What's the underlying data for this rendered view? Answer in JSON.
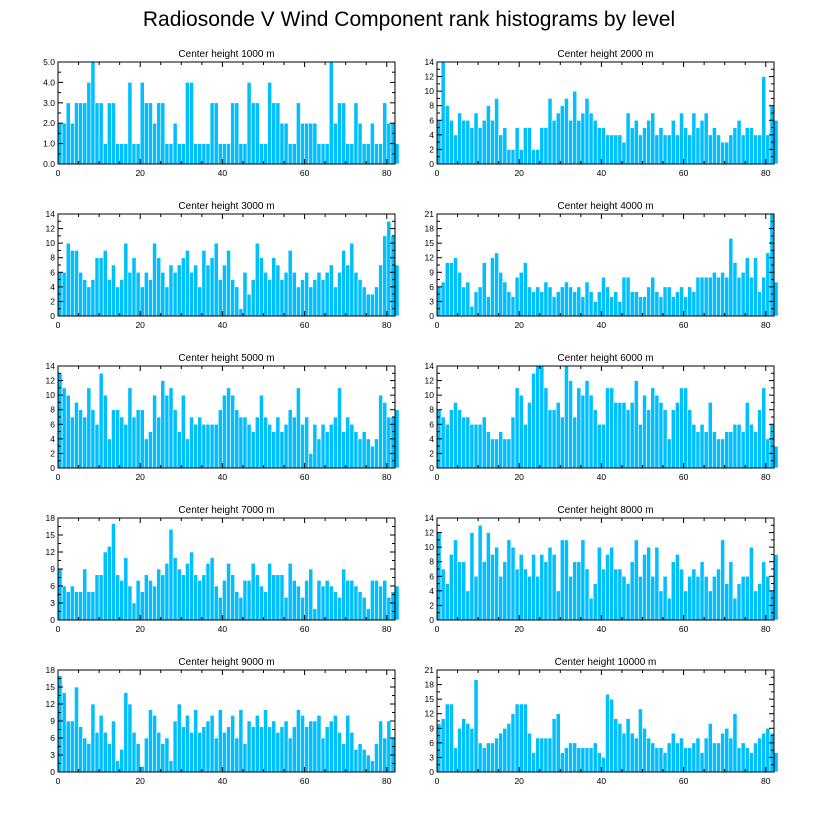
{
  "title": "Radiosonde V Wind Component rank histograms by level",
  "colors": {
    "bar": "#00BFFF",
    "bar_edge": "#ffffff",
    "axis": "#000000"
  },
  "chart_data": [
    {
      "type": "bar",
      "title": "Center height 1000 m",
      "ylim": [
        0,
        5
      ],
      "yticks": [
        0,
        1,
        2,
        3,
        4,
        5
      ],
      "ytick_labels": [
        "0.0",
        "1.0",
        "2.0",
        "3.0",
        "4.0",
        "5.0"
      ],
      "xlim": [
        0,
        82
      ],
      "xticks": [
        0,
        20,
        40,
        60,
        80
      ],
      "values": [
        2,
        2,
        3,
        2,
        3,
        3,
        3,
        4,
        5,
        3,
        3,
        1,
        3,
        3,
        1,
        1,
        1,
        4,
        1,
        1,
        4,
        3,
        3,
        2,
        3,
        3,
        1,
        1,
        2,
        1,
        1,
        4,
        4,
        1,
        1,
        1,
        1,
        3,
        3,
        1,
        1,
        1,
        3,
        3,
        1,
        1,
        4,
        3,
        3,
        1,
        1,
        4,
        3,
        3,
        2,
        2,
        1,
        1,
        3,
        2,
        2,
        2,
        2,
        1,
        1,
        1,
        5,
        2,
        3,
        3,
        1,
        1,
        3,
        2,
        1,
        1,
        2,
        1,
        1,
        3,
        2,
        2,
        1
      ]
    },
    {
      "type": "bar",
      "title": "Center height 2000 m",
      "ylim": [
        0,
        14
      ],
      "yticks": [
        0,
        2,
        4,
        6,
        8,
        10,
        12,
        14
      ],
      "ytick_labels": [
        "0",
        "2",
        "4",
        "6",
        "8",
        "10",
        "12",
        "14"
      ],
      "xlim": [
        0,
        82
      ],
      "xticks": [
        0,
        20,
        40,
        60,
        80
      ],
      "values": [
        6,
        14,
        8,
        6,
        4,
        7,
        6,
        6,
        5,
        7,
        5,
        6,
        8,
        6,
        9,
        4,
        5,
        2,
        2,
        5,
        2,
        5,
        5,
        2,
        2,
        5,
        5,
        9,
        6,
        7,
        8,
        9,
        6,
        10,
        6,
        7,
        9,
        7,
        6,
        5,
        5,
        4,
        4,
        4,
        4,
        3,
        7,
        5,
        6,
        4,
        5,
        6,
        7,
        4,
        5,
        4,
        4,
        6,
        4,
        7,
        5,
        4,
        7,
        5,
        6,
        7,
        4,
        5,
        4,
        3,
        3,
        4,
        5,
        6,
        4,
        5,
        5,
        4,
        4,
        12,
        4,
        8,
        6
      ]
    },
    {
      "type": "bar",
      "title": "Center height 3000 m",
      "ylim": [
        0,
        14
      ],
      "yticks": [
        0,
        2,
        4,
        6,
        8,
        10,
        12,
        14
      ],
      "ytick_labels": [
        "0",
        "2",
        "4",
        "6",
        "8",
        "10",
        "12",
        "14"
      ],
      "xlim": [
        0,
        82
      ],
      "xticks": [
        0,
        20,
        40,
        60,
        80
      ],
      "values": [
        6,
        6,
        10,
        9,
        9,
        6,
        5,
        4,
        5,
        8,
        8,
        9,
        5,
        7,
        4,
        5,
        10,
        6,
        8,
        6,
        4,
        6,
        5,
        10,
        8,
        6,
        4,
        7,
        6,
        7,
        8,
        9,
        6,
        7,
        4,
        9,
        7,
        8,
        10,
        5,
        7,
        9,
        5,
        4,
        1,
        6,
        3,
        5,
        10,
        8,
        6,
        5,
        8,
        7,
        5,
        6,
        9,
        6,
        4,
        5,
        6,
        4,
        5,
        6,
        5,
        6,
        7,
        4,
        6,
        9,
        7,
        10,
        6,
        5,
        4,
        3,
        3,
        4,
        7,
        11,
        13,
        11,
        7
      ]
    },
    {
      "type": "bar",
      "title": "Center height 4000 m",
      "ylim": [
        0,
        21
      ],
      "yticks": [
        0,
        3,
        6,
        9,
        12,
        15,
        18,
        21
      ],
      "ytick_labels": [
        "0",
        "3",
        "6",
        "9",
        "12",
        "15",
        "18",
        "21"
      ],
      "xlim": [
        0,
        82
      ],
      "xticks": [
        0,
        20,
        40,
        60,
        80
      ],
      "values": [
        6,
        7,
        11,
        11,
        12,
        9,
        6,
        7,
        2,
        5,
        6,
        11,
        4,
        12,
        13,
        9,
        7,
        5,
        4,
        8,
        9,
        11,
        6,
        5,
        6,
        5,
        7,
        6,
        4,
        5,
        6,
        7,
        6,
        5,
        6,
        4,
        7,
        5,
        3,
        5,
        8,
        6,
        4,
        5,
        3,
        8,
        8,
        5,
        5,
        4,
        4,
        6,
        8,
        5,
        4,
        6,
        6,
        4,
        5,
        6,
        4,
        6,
        5,
        8,
        8,
        8,
        8,
        9,
        8,
        9,
        8,
        16,
        11,
        8,
        9,
        12,
        8,
        12,
        5,
        8,
        13,
        21,
        7
      ]
    },
    {
      "type": "bar",
      "title": "Center height 5000 m",
      "ylim": [
        0,
        14
      ],
      "yticks": [
        0,
        2,
        4,
        6,
        8,
        10,
        12,
        14
      ],
      "ytick_labels": [
        "0",
        "2",
        "4",
        "6",
        "8",
        "10",
        "12",
        "14"
      ],
      "xlim": [
        0,
        82
      ],
      "xticks": [
        0,
        20,
        40,
        60,
        80
      ],
      "values": [
        13,
        11,
        10,
        7,
        9,
        8,
        7,
        11,
        8,
        6,
        13,
        10,
        4,
        8,
        8,
        7,
        6,
        11,
        7,
        8,
        8,
        4,
        5,
        10,
        7,
        12,
        10,
        11,
        8,
        5,
        10,
        4,
        7,
        6,
        7,
        6,
        6,
        6,
        6,
        8,
        10,
        11,
        10,
        8,
        7,
        7,
        6,
        5,
        7,
        10,
        7,
        6,
        5,
        7,
        5,
        6,
        8,
        7,
        11,
        6,
        7,
        2,
        6,
        4,
        6,
        5,
        6,
        7,
        11,
        5,
        7,
        6,
        5,
        4,
        5,
        4,
        3,
        4,
        10,
        9,
        7,
        7,
        8
      ]
    },
    {
      "type": "bar",
      "title": "Center height 6000 m",
      "ylim": [
        0,
        14
      ],
      "yticks": [
        0,
        2,
        4,
        6,
        8,
        10,
        12,
        14
      ],
      "ytick_labels": [
        "0",
        "2",
        "4",
        "6",
        "8",
        "10",
        "12",
        "14"
      ],
      "xlim": [
        0,
        82
      ],
      "xticks": [
        0,
        20,
        40,
        60,
        80
      ],
      "values": [
        8,
        7,
        6,
        8,
        9,
        8,
        7,
        7,
        6,
        6,
        6,
        7,
        5,
        4,
        4,
        5,
        4,
        4,
        7,
        11,
        10,
        6,
        9,
        13,
        14,
        14,
        11,
        8,
        8,
        9,
        7,
        14,
        12,
        7,
        11,
        10,
        12,
        10,
        8,
        6,
        6,
        11,
        11,
        9,
        9,
        9,
        8,
        9,
        12,
        6,
        10,
        8,
        11,
        10,
        9,
        8,
        4,
        8,
        9,
        11,
        11,
        8,
        6,
        5,
        6,
        5,
        9,
        5,
        4,
        4,
        5,
        5,
        6,
        6,
        5,
        9,
        6,
        5,
        8,
        11,
        4,
        6,
        3
      ]
    },
    {
      "type": "bar",
      "title": "Center height 7000 m",
      "ylim": [
        0,
        18
      ],
      "yticks": [
        0,
        3,
        6,
        9,
        12,
        15,
        18
      ],
      "ytick_labels": [
        "0",
        "3",
        "6",
        "9",
        "12",
        "15",
        "18"
      ],
      "xlim": [
        0,
        82
      ],
      "xticks": [
        0,
        20,
        40,
        60,
        80
      ],
      "values": [
        9,
        6,
        5,
        6,
        5,
        5,
        9,
        5,
        5,
        8,
        8,
        12,
        13,
        17,
        8,
        7,
        11,
        6,
        3,
        7,
        5,
        8,
        7,
        6,
        9,
        8,
        10,
        16,
        11,
        9,
        8,
        10,
        12,
        8,
        7,
        8,
        10,
        11,
        6,
        4,
        7,
        10,
        8,
        5,
        4,
        7,
        7,
        10,
        8,
        6,
        5,
        10,
        8,
        8,
        8,
        4,
        10,
        7,
        6,
        4,
        7,
        9,
        2,
        7,
        6,
        7,
        6,
        5,
        4,
        9,
        7,
        7,
        6,
        5,
        4,
        2,
        7,
        7,
        6,
        7,
        4,
        5,
        6
      ]
    },
    {
      "type": "bar",
      "title": "Center height 8000 m",
      "ylim": [
        0,
        14
      ],
      "yticks": [
        0,
        2,
        4,
        6,
        8,
        10,
        12,
        14
      ],
      "ytick_labels": [
        "0",
        "2",
        "4",
        "6",
        "8",
        "10",
        "12",
        "14"
      ],
      "xlim": [
        0,
        82
      ],
      "xticks": [
        0,
        20,
        40,
        60,
        80
      ],
      "values": [
        12,
        7,
        5,
        9,
        11,
        8,
        8,
        4,
        12,
        6,
        13,
        8,
        12,
        9,
        10,
        6,
        8,
        11,
        10,
        7,
        9,
        7,
        6,
        9,
        6,
        9,
        8,
        10,
        9,
        4,
        11,
        11,
        6,
        8,
        8,
        11,
        7,
        3,
        5,
        10,
        7,
        9,
        10,
        7,
        7,
        6,
        5,
        8,
        11,
        6,
        9,
        10,
        6,
        10,
        4,
        6,
        3,
        8,
        9,
        7,
        4,
        6,
        7,
        6,
        8,
        6,
        4,
        6,
        7,
        11,
        5,
        8,
        3,
        5,
        6,
        6,
        10,
        4,
        5,
        8,
        6,
        4,
        9
      ]
    },
    {
      "type": "bar",
      "title": "Center height 9000 m",
      "ylim": [
        0,
        18
      ],
      "yticks": [
        0,
        3,
        6,
        9,
        12,
        15,
        18
      ],
      "ytick_labels": [
        "0",
        "3",
        "6",
        "9",
        "12",
        "15",
        "18"
      ],
      "xlim": [
        0,
        82
      ],
      "xticks": [
        0,
        20,
        40,
        60,
        80
      ],
      "values": [
        17,
        14,
        9,
        9,
        15,
        8,
        6,
        5,
        12,
        7,
        10,
        7,
        5,
        9,
        2,
        4,
        14,
        12,
        7,
        5,
        1,
        6,
        11,
        10,
        7,
        5,
        6,
        2,
        9,
        12,
        8,
        10,
        7,
        11,
        7,
        8,
        9,
        10,
        6,
        11,
        7,
        8,
        10,
        6,
        11,
        5,
        9,
        8,
        10,
        8,
        11,
        8,
        9,
        7,
        8,
        9,
        6,
        8,
        11,
        10,
        8,
        9,
        9,
        10,
        6,
        8,
        9,
        10,
        7,
        5,
        10,
        7,
        4,
        5,
        4,
        3,
        2,
        5,
        9,
        6,
        9,
        6
      ]
    },
    {
      "type": "bar",
      "title": "Center height 10000 m",
      "ylim": [
        0,
        21
      ],
      "yticks": [
        0,
        3,
        6,
        9,
        12,
        15,
        18,
        21
      ],
      "ytick_labels": [
        "0",
        "3",
        "6",
        "9",
        "12",
        "15",
        "18",
        "21"
      ],
      "xlim": [
        0,
        82
      ],
      "xticks": [
        0,
        20,
        40,
        60,
        80
      ],
      "values": [
        10,
        11,
        14,
        14,
        5,
        9,
        11,
        10,
        9,
        19,
        6,
        5,
        6,
        6,
        7,
        8,
        9,
        10,
        12,
        14,
        14,
        14,
        8,
        4,
        7,
        7,
        7,
        7,
        11,
        12,
        4,
        5,
        6,
        6,
        5,
        5,
        5,
        5,
        6,
        4,
        3,
        16,
        15,
        11,
        10,
        8,
        11,
        8,
        7,
        13,
        9,
        7,
        6,
        5,
        5,
        4,
        6,
        8,
        6,
        7,
        5,
        5,
        6,
        7,
        4,
        7,
        10,
        6,
        6,
        8,
        9,
        7,
        12,
        5,
        6,
        5,
        4,
        6,
        7,
        8,
        9,
        8,
        4
      ]
    }
  ]
}
